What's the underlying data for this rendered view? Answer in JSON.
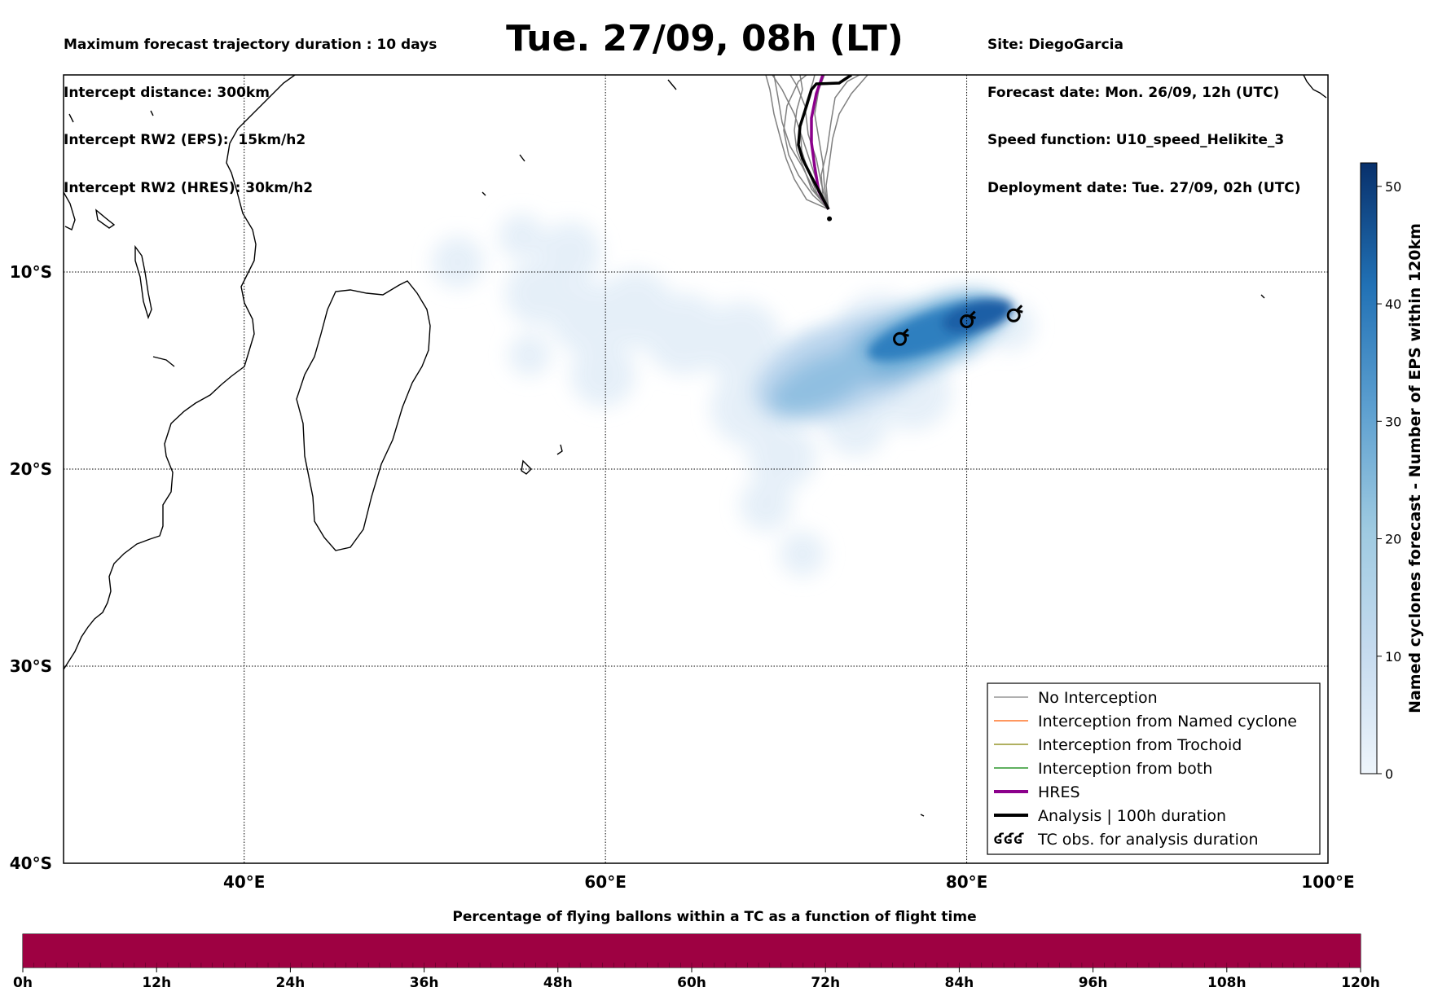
{
  "header": {
    "left_lines": [
      "Maximum forecast trajectory duration : 10 days",
      "Intercept distance: 300km",
      "Intercept RW2 (EPS):  15km/h2",
      "Intercept RW2 (HRES): 30km/h2"
    ],
    "title": "Tue. 27/09, 08h (LT)",
    "right_lines": [
      "Site: DiegoGarcia",
      "Forecast date: Mon. 26/09, 12h (UTC)",
      "Speed function: U10_speed_Helikite_3",
      "Deployment date: Tue. 27/09, 02h (UTC)"
    ]
  },
  "map": {
    "lon_range": [
      30,
      100
    ],
    "lat_range": [
      -40,
      0
    ],
    "lon_ticks": [
      {
        "value": 40,
        "label": "40°E"
      },
      {
        "value": 60,
        "label": "60°E"
      },
      {
        "value": 80,
        "label": "80°E"
      },
      {
        "value": 100,
        "label": "100°E"
      }
    ],
    "lat_ticks": [
      {
        "value": -10,
        "label": "10°S"
      },
      {
        "value": -20,
        "label": "20°S"
      },
      {
        "value": -30,
        "label": "30°S"
      },
      {
        "value": -40,
        "label": "40°S"
      }
    ],
    "launch_site": {
      "lon": 72.4,
      "lat": -7.3
    },
    "tc_observations": [
      {
        "lon": 76.3,
        "lat": -13.4
      },
      {
        "lon": 80.0,
        "lat": -12.5
      },
      {
        "lon": 82.6,
        "lat": -12.2
      }
    ]
  },
  "legend": {
    "items": [
      {
        "label": "No Interception",
        "color": "#808080",
        "style": "thin"
      },
      {
        "label": "Interception from Named cyclone",
        "color": "#ff5a00",
        "style": "thin"
      },
      {
        "label": "Interception from Trochoid",
        "color": "#808000",
        "style": "thin"
      },
      {
        "label": "Interception from both",
        "color": "#008000",
        "style": "thin"
      },
      {
        "label": "HRES",
        "color": "#8b008b",
        "style": "thick"
      },
      {
        "label": "Analysis | 100h duration",
        "color": "#000000",
        "style": "thick"
      },
      {
        "label": "TC obs. for analysis duration",
        "color": "#000000",
        "style": "symbol",
        "symbol": "ʛʛʛ"
      }
    ]
  },
  "colorbar": {
    "label": "Named cyclones forecast - Number of EPS within 120km",
    "ticks": [
      {
        "value": 0,
        "label": "0"
      },
      {
        "value": 10,
        "label": "10"
      },
      {
        "value": 20,
        "label": "20"
      },
      {
        "value": 30,
        "label": "30"
      },
      {
        "value": 40,
        "label": "40"
      },
      {
        "value": 50,
        "label": "50"
      }
    ],
    "range": [
      0,
      52
    ],
    "colors": [
      "#e6eff9",
      "#c6dbef",
      "#9ecae1",
      "#6baed6",
      "#3182bd",
      "#08519c",
      "#08306b"
    ]
  },
  "bottom_bar": {
    "title": "Percentage of flying ballons within a TC as a function of flight time",
    "color": "#9e0142",
    "fill_fraction": 1.0,
    "ticks": [
      {
        "value": 0,
        "label": "0h"
      },
      {
        "value": 12,
        "label": "12h"
      },
      {
        "value": 24,
        "label": "24h"
      },
      {
        "value": 36,
        "label": "36h"
      },
      {
        "value": 48,
        "label": "48h"
      },
      {
        "value": 60,
        "label": "60h"
      },
      {
        "value": 72,
        "label": "72h"
      },
      {
        "value": 84,
        "label": "84h"
      },
      {
        "value": 96,
        "label": "96h"
      },
      {
        "value": 108,
        "label": "108h"
      },
      {
        "value": 120,
        "label": "120h"
      }
    ]
  }
}
